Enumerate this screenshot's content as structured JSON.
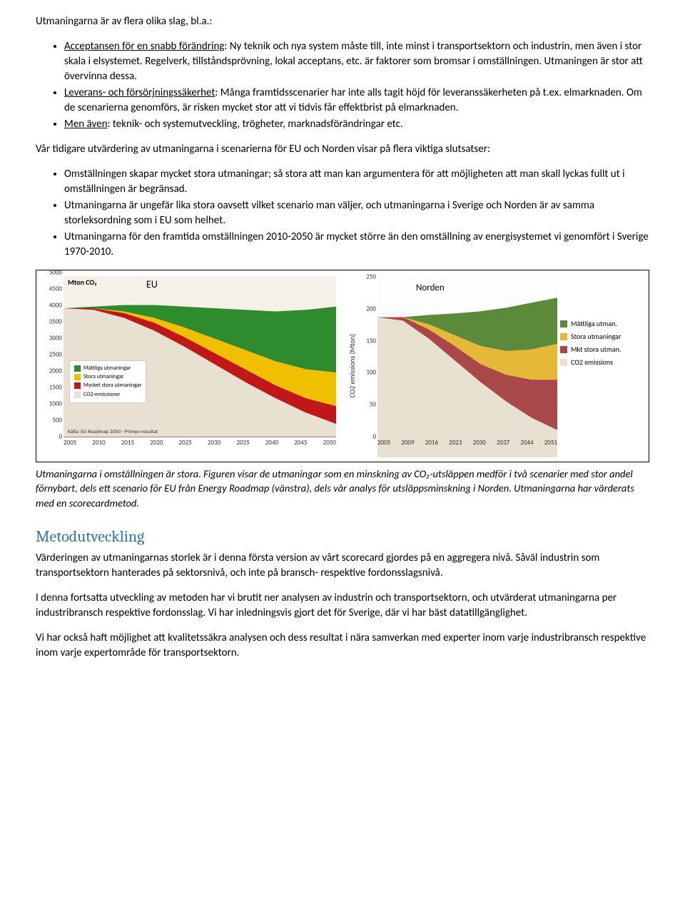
{
  "intro": "Utmaningarna är av flera olika slag, bl.a.:",
  "bullets1": [
    {
      "lead": "Acceptansen för en snabb förändring",
      "rest": ": Ny teknik och nya system måste till, inte minst i transportsektorn och industrin, men även i stor skala i elsystemet. Regelverk, tillståndsprövning, lokal acceptans, etc. är faktorer som bromsar i omställningen. Utmaningen är stor att övervinna dessa."
    },
    {
      "lead": "Leverans- och försörjningssäkerhet",
      "rest": ": Många framtidsscenarier har inte alls tagit höjd för leveranssäkerheten på t.ex. elmarknaden. Om de scenarierna genomförs, är risken mycket stor att vi tidvis får effektbrist på elmarknaden."
    },
    {
      "lead": "Men även",
      "rest": ": teknik- och systemutveckling, trögheter, marknadsförändringar etc."
    }
  ],
  "para2": "Vår tidigare utvärdering av utmaningarna i scenarierna för EU och Norden visar på flera viktiga slutsatser:",
  "bullets2": [
    "Omställningen skapar mycket stora utmaningar; så stora att man kan argumentera för att möjligheten att man skall lyckas fullt ut i omställningen är begränsad.",
    "Utmaningarna är ungefär lika stora oavsett vilket scenario man väljer, och utmaningarna i Sverige och Norden är av samma storleksordning som i EU som helhet.",
    "Utmaningarna för den framtida omställningen 2010-2050 är mycket större än den omställning av energisystemet vi genomfört i Sverige 1970-2010."
  ],
  "chart_eu": {
    "unit": "Mton CO₂",
    "title": "EU",
    "ylim": [
      0,
      5000
    ],
    "yticks": [
      "0",
      "500",
      "1000",
      "1500",
      "2000",
      "2500",
      "3000",
      "3500",
      "4000",
      "4500",
      "5000"
    ],
    "xticks": [
      "2005",
      "2010",
      "2015",
      "2020",
      "2025",
      "2030",
      "2035",
      "2040",
      "2045",
      "2050"
    ],
    "colors": {
      "green": "#2e8b2e",
      "yellow": "#f0c000",
      "red": "#c01818",
      "base": "#e8e0d0",
      "bg": "#f5f0e8"
    },
    "legend": [
      {
        "label": "Måttliga utmaningar",
        "color": "#2e8b2e"
      },
      {
        "label": "Stora utmaningar",
        "color": "#f0c000"
      },
      {
        "label": "Mycket stora utmaningar",
        "color": "#c01818"
      },
      {
        "label": "CO2-emissioner",
        "color": "#e8e0d0"
      }
    ],
    "source": "Källa: EU Roadmap 2050\n- Primes-resultat",
    "series": {
      "top": [
        4000,
        4050,
        4100,
        4100,
        4050,
        4000,
        3950,
        3900,
        3950,
        4050
      ],
      "yellow": [
        4000,
        4000,
        3900,
        3700,
        3400,
        3050,
        2700,
        2350,
        2100,
        2000
      ],
      "red": [
        4000,
        4000,
        3850,
        3550,
        3100,
        2600,
        2100,
        1600,
        1200,
        950
      ],
      "base": [
        4000,
        3950,
        3700,
        3300,
        2800,
        2250,
        1700,
        1200,
        750,
        400
      ]
    }
  },
  "chart_norden": {
    "title": "Norden",
    "ylabel": "CO2 emissions (Mton)",
    "ylim": [
      0,
      250
    ],
    "yticks": [
      "0",
      "50",
      "100",
      "150",
      "200",
      "250"
    ],
    "xticks": [
      "2005",
      "2009",
      "2016",
      "2023",
      "2030",
      "2037",
      "2044",
      "2051"
    ],
    "colors": {
      "green": "#5a8a3a",
      "yellow": "#e6b838",
      "red": "#a84848",
      "base": "#e8e0d0",
      "bg": "#fdfdfd",
      "grid": "#c8c8c8"
    },
    "legend": [
      {
        "label": "Måttliga utman.",
        "color": "#5a8a3a"
      },
      {
        "label": "Stora utmaningar",
        "color": "#e6b838"
      },
      {
        "label": "Mkt stora utman.",
        "color": "#a84848"
      },
      {
        "label": "CO2 emissions",
        "color": "#e8e0d0"
      }
    ],
    "series": {
      "top": [
        195,
        195,
        198,
        200,
        203,
        208,
        215,
        222
      ],
      "yellow": [
        195,
        195,
        185,
        170,
        155,
        148,
        150,
        158
      ],
      "red": [
        195,
        195,
        178,
        155,
        130,
        115,
        108,
        108
      ],
      "base": [
        195,
        190,
        165,
        135,
        105,
        78,
        55,
        38
      ]
    }
  },
  "caption": "Utmaningarna i omställningen är stora. Figuren visar de utmaningar som en minskning av CO₂-utsläppen medför i två scenarier med stor andel förnybart, dels ett scenario för EU från Energy Roadmap (vänstra), dels vår analys för utsläppsminskning i Norden. Utmaningarna har värderats med en scorecardmetod.",
  "h2": "Metodutveckling",
  "para3": "Värderingen av utmaningarnas storlek är i denna första version av vårt scorecard gjordes på en aggregera nivå. Såväl industrin som transportsektorn hanterades på sektorsnivå, och inte på bransch- respektive fordonsslagsnivå.",
  "para4": "I denna fortsatta utveckling av metoden har vi brutit ner analysen av industrin och transportsektorn, och utvärderat utmaningarna per industribransch respektive fordonsslag. Vi har inledningsvis gjort det för Sverige, där vi har bäst datatillgänglighet.",
  "para5": "Vi har också haft möjlighet att kvalitetssäkra analysen och dess resultat i nära samverkan med experter inom varje industribransch respektive inom varje expertområde för transportsektorn."
}
